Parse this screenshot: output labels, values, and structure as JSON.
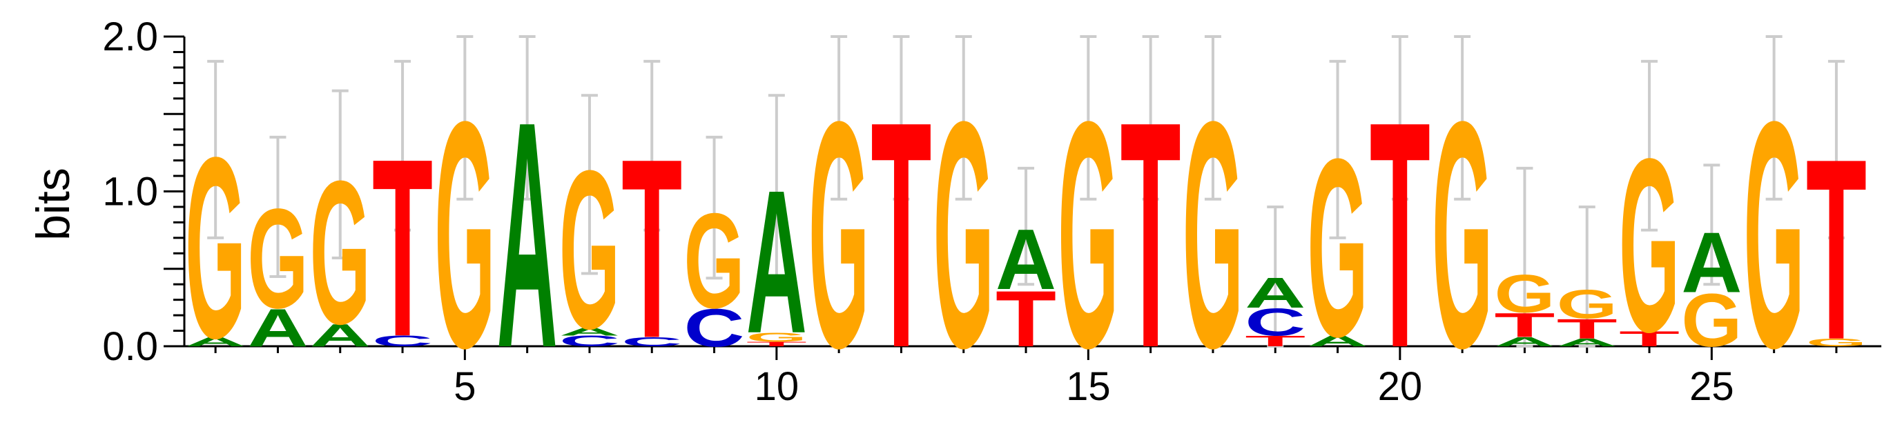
{
  "colors": {
    "A": "#008000",
    "C": "#0000cc",
    "G": "#ffa500",
    "T": "#ff0000",
    "error_bar": "#cccccc",
    "axis": "#000000"
  },
  "chart_data": {
    "type": "sequence-logo",
    "ylabel": "bits",
    "ylim": [
      0,
      2.0
    ],
    "y_ticks": [
      "0.0",
      "1.0",
      "2.0"
    ],
    "x_ticks": [
      "5",
      "10",
      "15",
      "20",
      "25"
    ],
    "positions": [
      {
        "pos": 1,
        "letters": [
          {
            "b": "A",
            "h": 0.06
          },
          {
            "b": "G",
            "h": 1.2
          }
        ],
        "err": [
          0.7,
          1.84
        ]
      },
      {
        "pos": 2,
        "letters": [
          {
            "b": "A",
            "h": 0.25
          },
          {
            "b": "G",
            "h": 0.66
          }
        ],
        "err": [
          0.45,
          1.35
        ]
      },
      {
        "pos": 3,
        "letters": [
          {
            "b": "A",
            "h": 0.15
          },
          {
            "b": "G",
            "h": 0.95
          }
        ],
        "err": [
          0.57,
          1.65
        ]
      },
      {
        "pos": 4,
        "letters": [
          {
            "b": "C",
            "h": 0.07
          },
          {
            "b": "T",
            "h": 1.18
          }
        ],
        "err": [
          0.75,
          1.84
        ]
      },
      {
        "pos": 5,
        "letters": [
          {
            "b": "G",
            "h": 1.5
          }
        ],
        "err": [
          0.95,
          2.0
        ]
      },
      {
        "pos": 6,
        "letters": [
          {
            "b": "A",
            "h": 1.5
          }
        ],
        "err": [
          0.95,
          2.0
        ]
      },
      {
        "pos": 7,
        "letters": [
          {
            "b": "C",
            "h": 0.07
          },
          {
            "b": "A",
            "h": 0.05
          },
          {
            "b": "G",
            "h": 1.05
          }
        ],
        "err": [
          0.47,
          1.62
        ]
      },
      {
        "pos": 8,
        "letters": [
          {
            "b": "C",
            "h": 0.06
          },
          {
            "b": "T",
            "h": 1.19
          }
        ],
        "err": [
          0.75,
          1.84
        ]
      },
      {
        "pos": 9,
        "letters": [
          {
            "b": "C",
            "h": 0.25
          },
          {
            "b": "G",
            "h": 0.63
          }
        ],
        "err": [
          0.44,
          1.35
        ]
      },
      {
        "pos": 10,
        "letters": [
          {
            "b": "T",
            "h": 0.03
          },
          {
            "b": "G",
            "h": 0.06
          },
          {
            "b": "A",
            "h": 0.95
          }
        ],
        "err": [
          0.45,
          1.62
        ]
      },
      {
        "pos": 11,
        "letters": [
          {
            "b": "G",
            "h": 1.5
          }
        ],
        "err": [
          0.95,
          2.0
        ]
      },
      {
        "pos": 12,
        "letters": [
          {
            "b": "T",
            "h": 1.5
          }
        ],
        "err": [
          0.95,
          2.0
        ]
      },
      {
        "pos": 13,
        "letters": [
          {
            "b": "G",
            "h": 1.5
          }
        ],
        "err": [
          0.95,
          2.0
        ]
      },
      {
        "pos": 14,
        "letters": [
          {
            "b": "T",
            "h": 0.37
          },
          {
            "b": "A",
            "h": 0.4
          }
        ],
        "err": [
          0.4,
          1.15
        ]
      },
      {
        "pos": 15,
        "letters": [
          {
            "b": "G",
            "h": 1.5
          }
        ],
        "err": [
          0.95,
          2.0
        ]
      },
      {
        "pos": 16,
        "letters": [
          {
            "b": "T",
            "h": 1.5
          }
        ],
        "err": [
          0.95,
          2.0
        ]
      },
      {
        "pos": 17,
        "letters": [
          {
            "b": "G",
            "h": 1.5
          }
        ],
        "err": [
          0.95,
          2.0
        ]
      },
      {
        "pos": 18,
        "letters": [
          {
            "b": "T",
            "h": 0.07
          },
          {
            "b": "C",
            "h": 0.18
          },
          {
            "b": "A",
            "h": 0.2
          }
        ],
        "err": [
          0.0,
          0.9
        ]
      },
      {
        "pos": 19,
        "letters": [
          {
            "b": "A",
            "h": 0.07
          },
          {
            "b": "G",
            "h": 1.18
          }
        ],
        "err": [
          0.7,
          1.84
        ]
      },
      {
        "pos": 20,
        "letters": [
          {
            "b": "T",
            "h": 1.5
          }
        ],
        "err": [
          0.95,
          2.0
        ]
      },
      {
        "pos": 21,
        "letters": [
          {
            "b": "G",
            "h": 1.5
          }
        ],
        "err": [
          0.95,
          2.0
        ]
      },
      {
        "pos": 22,
        "letters": [
          {
            "b": "A",
            "h": 0.06
          },
          {
            "b": "T",
            "h": 0.16
          },
          {
            "b": "G",
            "h": 0.25
          }
        ],
        "err": [
          0.0,
          1.15
        ]
      },
      {
        "pos": 23,
        "letters": [
          {
            "b": "A",
            "h": 0.05
          },
          {
            "b": "T",
            "h": 0.13
          },
          {
            "b": "G",
            "h": 0.19
          }
        ],
        "err": [
          0.0,
          0.9
        ]
      },
      {
        "pos": 24,
        "letters": [
          {
            "b": "T",
            "h": 0.1
          },
          {
            "b": "G",
            "h": 1.15
          }
        ],
        "err": [
          0.75,
          1.84
        ]
      },
      {
        "pos": 25,
        "letters": [
          {
            "b": "G",
            "h": 0.35
          },
          {
            "b": "A",
            "h": 0.4
          }
        ],
        "err": [
          0.4,
          1.17
        ]
      },
      {
        "pos": 26,
        "letters": [
          {
            "b": "G",
            "h": 1.5
          }
        ],
        "err": [
          0.95,
          2.0
        ]
      },
      {
        "pos": 27,
        "letters": [
          {
            "b": "G",
            "h": 0.05
          },
          {
            "b": "T",
            "h": 1.2
          }
        ],
        "err": [
          0.7,
          1.84
        ]
      }
    ]
  }
}
